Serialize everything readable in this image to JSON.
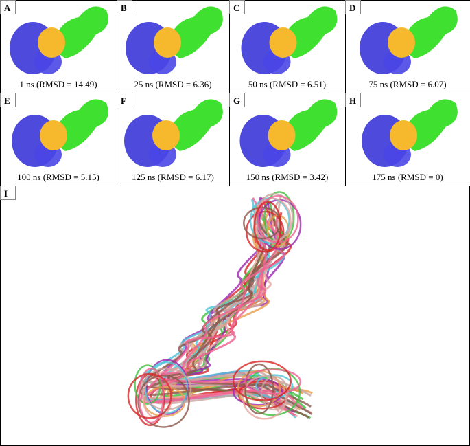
{
  "panels": [
    {
      "label": "A",
      "caption": "1 ns (RMSD = 14.49)"
    },
    {
      "label": "B",
      "caption": "25 ns (RMSD = 6.36)"
    },
    {
      "label": "C",
      "caption": "50 ns (RMSD = 6.51)"
    },
    {
      "label": "D",
      "caption": "75 ns (RMSD = 6.07)"
    },
    {
      "label": "E",
      "caption": "100 ns (RMSD = 5.15)"
    },
    {
      "label": "F",
      "caption": "125 ns (RMSD = 6.17)"
    },
    {
      "label": "G",
      "caption": "150 ns (RMSD = 3.42)"
    },
    {
      "label": "H",
      "caption": "175 ns (RMSD = 0)"
    }
  ],
  "overlay": {
    "label": "I"
  }
}
